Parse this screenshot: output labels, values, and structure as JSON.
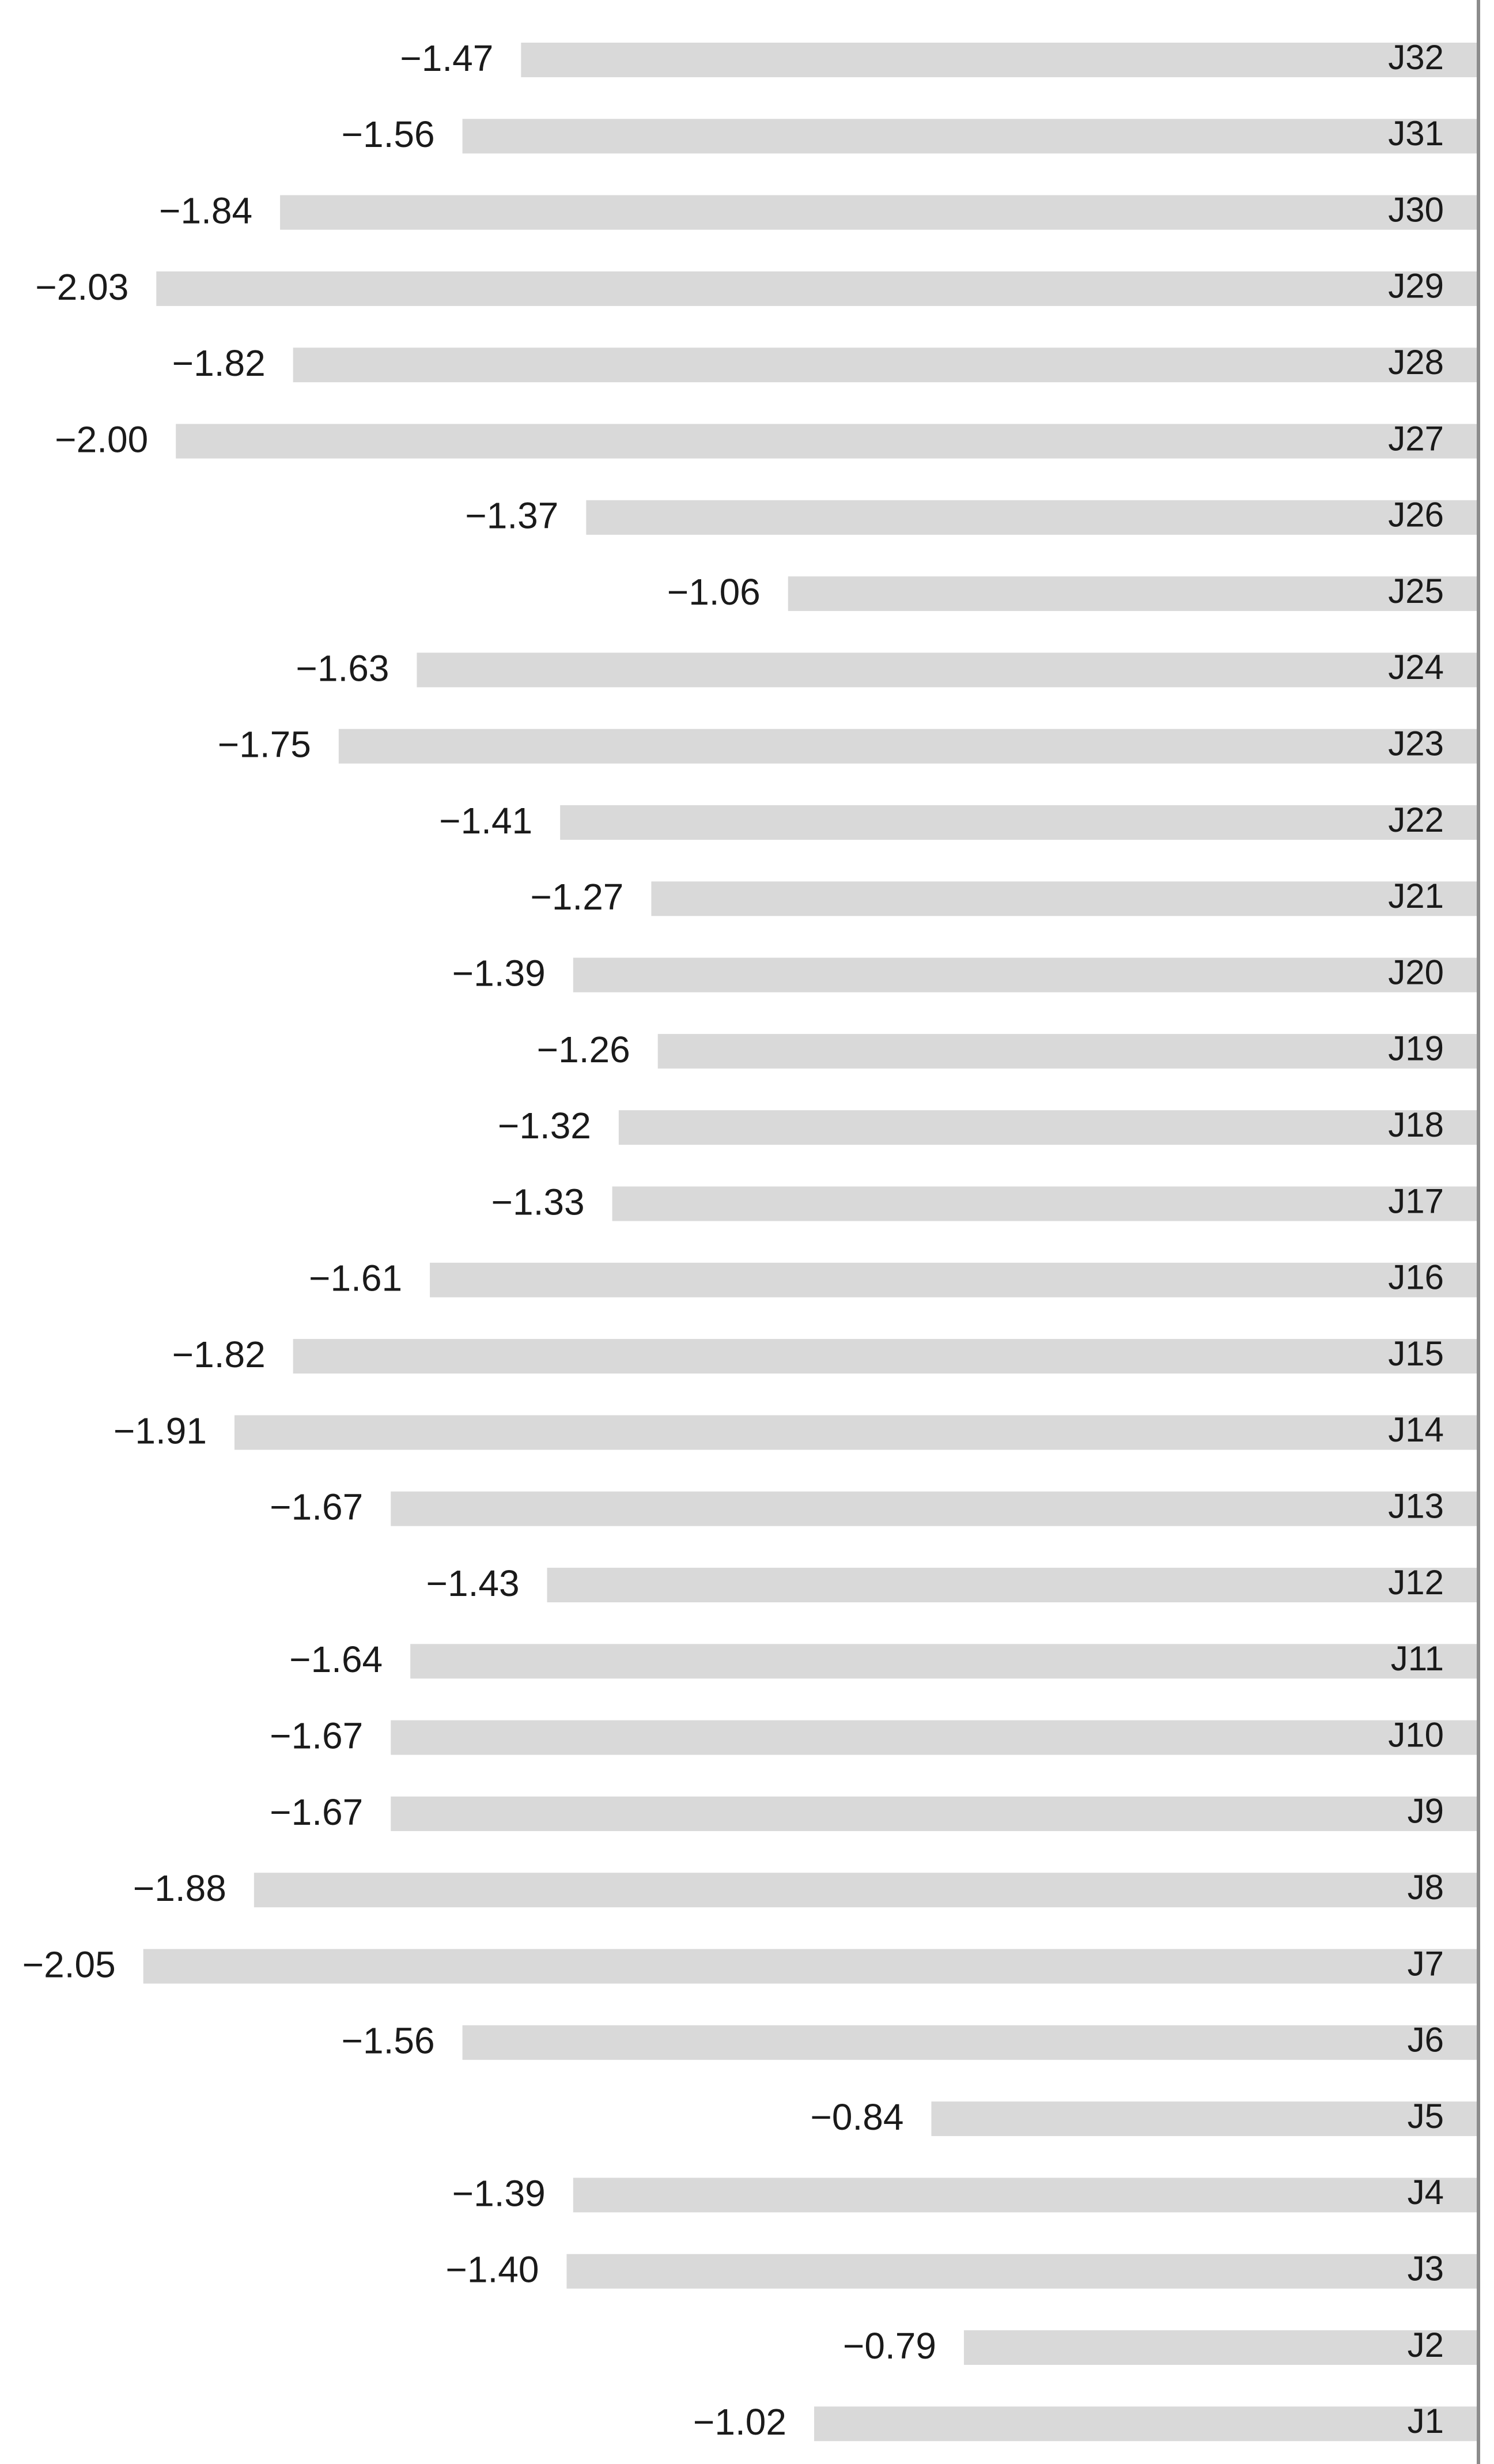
{
  "chart_data": {
    "type": "bar",
    "orientation": "horizontal",
    "categories": [
      "J1",
      "J2",
      "J3",
      "J4",
      "J5",
      "J6",
      "J7",
      "J8",
      "J9",
      "J10",
      "J11",
      "J12",
      "J13",
      "J14",
      "J15",
      "J16",
      "J17",
      "J18",
      "J19",
      "J20",
      "J21",
      "J22",
      "J23",
      "J24",
      "J25",
      "J26",
      "J27",
      "J28",
      "J29",
      "J30",
      "J31",
      "J32"
    ],
    "values": [
      -1.02,
      -0.79,
      -1.4,
      -1.39,
      -0.84,
      -1.56,
      -2.05,
      -1.88,
      -1.67,
      -1.67,
      -1.64,
      -1.43,
      -1.67,
      -1.91,
      -1.82,
      -1.61,
      -1.33,
      -1.32,
      -1.26,
      -1.39,
      -1.27,
      -1.41,
      -1.75,
      -1.63,
      -1.06,
      -1.37,
      -2.0,
      -1.82,
      -2.03,
      -1.84,
      -1.56,
      -1.47
    ],
    "value_labels": [
      "−1.02",
      "−0.79",
      "−1.40",
      "−1.39",
      "−0.84",
      "−1.56",
      "−2.05",
      "−1.88",
      "−1.67",
      "−1.67",
      "−1.64",
      "−1.43",
      "−1.67",
      "−1.91",
      "−1.82",
      "−1.61",
      "−1.33",
      "−1.32",
      "−1.26",
      "−1.39",
      "−1.27",
      "−1.41",
      "−1.75",
      "−1.63",
      "−1.06",
      "−1.37",
      "−2.00",
      "−1.82",
      "−2.03",
      "−1.84",
      "−1.56",
      "−1.47"
    ],
    "color": "#d9d9d9",
    "axis_color": "#8c8c8c",
    "xlim": [
      -2.27,
      0
    ]
  }
}
